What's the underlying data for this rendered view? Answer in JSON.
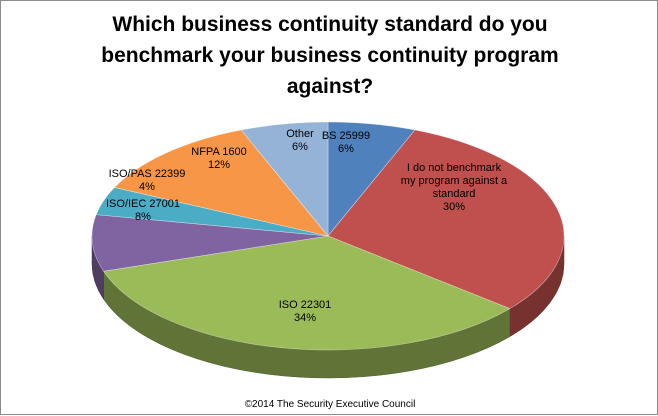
{
  "chart_data": {
    "type": "pie",
    "title": "Which business continuity standard do you benchmark your business continuity program against?",
    "title_lines": [
      "Which business continuity standard do you",
      "benchmark your business continuity program",
      "against?"
    ],
    "credit": "©2014 The Security Executive Council",
    "style": "3d-pie",
    "slices": [
      {
        "label": "BS 25999",
        "label_lines": [
          "BS 25999"
        ],
        "value": 6,
        "value_text": "6%",
        "color": "#4f81bd"
      },
      {
        "label": "I do not benchmark my program against a standard",
        "label_lines": [
          "I do not benchmark",
          "my program against a",
          "standard"
        ],
        "value": 30,
        "value_text": "30%",
        "color": "#c0504d"
      },
      {
        "label": "ISO 22301",
        "label_lines": [
          "ISO 22301"
        ],
        "value": 34,
        "value_text": "34%",
        "color": "#9bbb59"
      },
      {
        "label": "ISO/IEC 27001",
        "label_lines": [
          "ISO/IEC 27001"
        ],
        "value": 8,
        "value_text": "8%",
        "color": "#8064a2"
      },
      {
        "label": "ISO/PAS 22399",
        "label_lines": [
          "ISO/PAS 22399"
        ],
        "value": 4,
        "value_text": "4%",
        "color": "#4bacc6"
      },
      {
        "label": "NFPA 1600",
        "label_lines": [
          "NFPA 1600"
        ],
        "value": 12,
        "value_text": "12%",
        "color": "#f79646"
      },
      {
        "label": "Other",
        "label_lines": [
          "Other"
        ],
        "value": 6,
        "value_text": "6%",
        "color": "#95b3d7"
      }
    ]
  }
}
